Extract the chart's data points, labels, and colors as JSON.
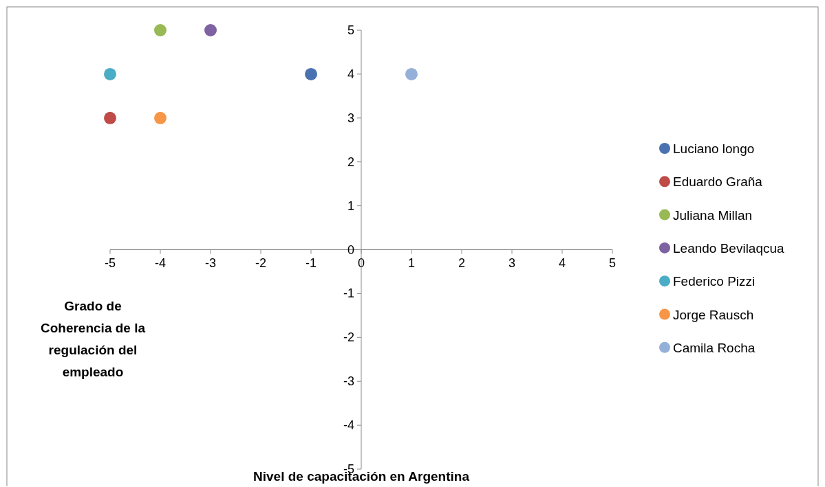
{
  "chart_data": {
    "type": "scatter",
    "xlabel": "Nivel de capacitación en Argentina",
    "ylabel": "Grado de Coherencia de la regulación del empleado",
    "xlim": [
      -5,
      5
    ],
    "ylim": [
      -5,
      5
    ],
    "xticks": [
      -5,
      -4,
      -3,
      -2,
      -1,
      0,
      1,
      2,
      3,
      4,
      5
    ],
    "yticks": [
      -5,
      -4,
      -3,
      -2,
      -1,
      0,
      1,
      2,
      3,
      4,
      5
    ],
    "grid": false,
    "legend": "right",
    "marker": "circle",
    "series": [
      {
        "name": "Luciano longo",
        "color": "#4a72b0",
        "x": [
          -1
        ],
        "values": [
          4
        ]
      },
      {
        "name": "Eduardo Graña",
        "color": "#be4b48",
        "x": [
          -5
        ],
        "values": [
          3
        ]
      },
      {
        "name": "Juliana Millan",
        "color": "#98b954",
        "x": [
          -4
        ],
        "values": [
          5
        ]
      },
      {
        "name": "Leando Bevilaqcua",
        "color": "#7e62a1",
        "x": [
          -3
        ],
        "values": [
          5
        ]
      },
      {
        "name": "Federico Pizzi",
        "color": "#4bacc6",
        "x": [
          -5
        ],
        "values": [
          4
        ]
      },
      {
        "name": "Jorge Rausch",
        "color": "#f79646",
        "x": [
          -4
        ],
        "values": [
          3
        ]
      },
      {
        "name": "Camila Rocha",
        "color": "#95b0d8",
        "x": [
          1
        ],
        "values": [
          4
        ]
      }
    ]
  }
}
